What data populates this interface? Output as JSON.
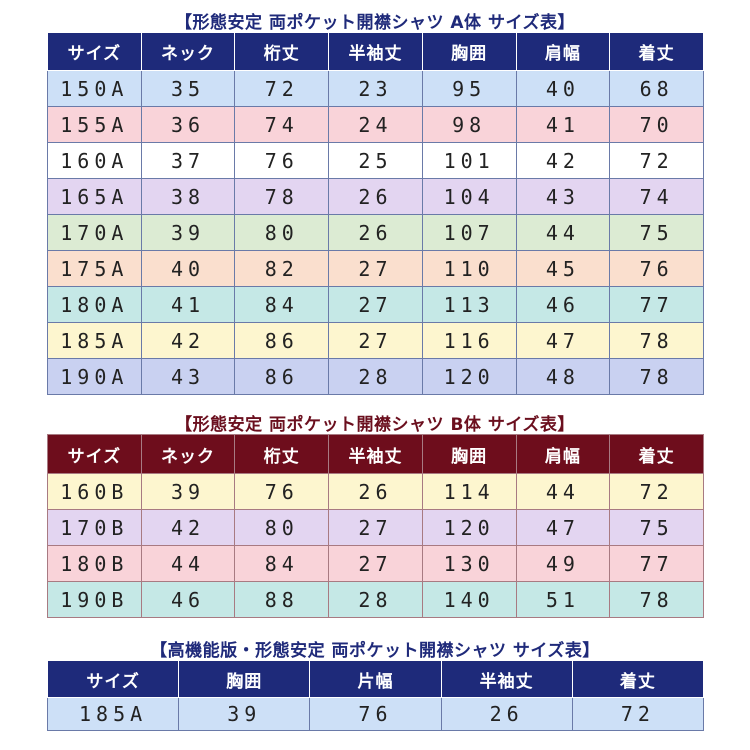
{
  "colors": {
    "header_a": "#1e2a7a",
    "header_b": "#6e0d1c",
    "title_a": "#1f2a7a",
    "title_b": "#6b0f1e"
  },
  "table_a": {
    "title": "【形態安定 両ポケット開襟シャツ A体 サイズ表】",
    "headers": [
      "サイズ",
      "ネック",
      "桁丈",
      "半袖丈",
      "胸囲",
      "肩幅",
      "着丈"
    ],
    "rows": [
      {
        "color": "#cde0f7",
        "cells": [
          "150A",
          "35",
          "72",
          "23",
          "95",
          "40",
          "68"
        ]
      },
      {
        "color": "#f9d3d9",
        "cells": [
          "155A",
          "36",
          "74",
          "24",
          "98",
          "41",
          "70"
        ]
      },
      {
        "color": "#ffffff",
        "cells": [
          "160A",
          "37",
          "76",
          "25",
          "101",
          "42",
          "72"
        ]
      },
      {
        "color": "#e3d5f1",
        "cells": [
          "165A",
          "38",
          "78",
          "26",
          "104",
          "43",
          "74"
        ]
      },
      {
        "color": "#dcebd3",
        "cells": [
          "170A",
          "39",
          "80",
          "26",
          "107",
          "44",
          "75"
        ]
      },
      {
        "color": "#fadfce",
        "cells": [
          "175A",
          "40",
          "82",
          "27",
          "110",
          "45",
          "76"
        ]
      },
      {
        "color": "#c5e8e6",
        "cells": [
          "180A",
          "41",
          "84",
          "27",
          "113",
          "46",
          "77"
        ]
      },
      {
        "color": "#fdf6cf",
        "cells": [
          "185A",
          "42",
          "86",
          "27",
          "116",
          "47",
          "78"
        ]
      },
      {
        "color": "#c9d1f1",
        "cells": [
          "190A",
          "43",
          "86",
          "28",
          "120",
          "48",
          "78"
        ]
      }
    ]
  },
  "table_b": {
    "title": "【形態安定 両ポケット開襟シャツ B体 サイズ表】",
    "headers": [
      "サイズ",
      "ネック",
      "桁丈",
      "半袖丈",
      "胸囲",
      "肩幅",
      "着丈"
    ],
    "rows": [
      {
        "color": "#fdf6cf",
        "cells": [
          "160B",
          "39",
          "76",
          "26",
          "114",
          "44",
          "72"
        ]
      },
      {
        "color": "#e3d5f1",
        "cells": [
          "170B",
          "42",
          "80",
          "27",
          "120",
          "47",
          "75"
        ]
      },
      {
        "color": "#f9d3d9",
        "cells": [
          "180B",
          "44",
          "84",
          "27",
          "130",
          "49",
          "77"
        ]
      },
      {
        "color": "#c5e8e6",
        "cells": [
          "190B",
          "46",
          "88",
          "28",
          "140",
          "51",
          "78"
        ]
      }
    ]
  },
  "table_c": {
    "title": "【高機能版・形態安定 両ポケット開襟シャツ サイズ表】",
    "headers": [
      "サイズ",
      "胸囲",
      "片幅",
      "半袖丈",
      "着丈"
    ],
    "rows": [
      {
        "color": "#cde0f7",
        "cells": [
          "185A",
          "39",
          "76",
          "26",
          "72"
        ]
      }
    ]
  }
}
